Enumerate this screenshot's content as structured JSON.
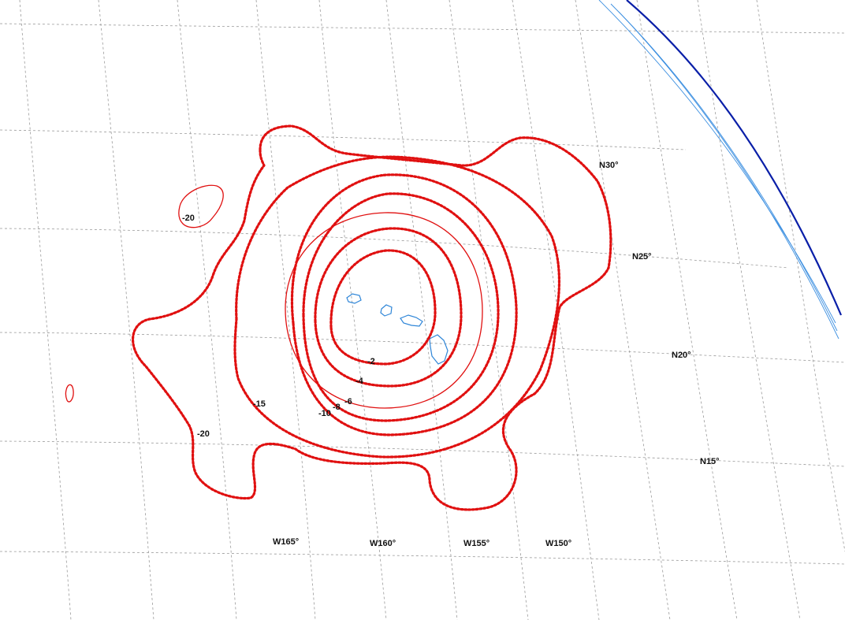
{
  "latitude_labels": [
    "N30°",
    "N25°",
    "N20°",
    "N15°"
  ],
  "longitude_labels": [
    "W165°",
    "W160°",
    "W155°",
    "W150°"
  ],
  "contour_labels": [
    "-2",
    "-4",
    "-6",
    "-8",
    "-10",
    "-15",
    "-20",
    "-20"
  ],
  "colors": {
    "contour": "#e01010",
    "graticule": "#9a9a9a",
    "coastline": "#2f86d8",
    "limb": "#0a1fa8",
    "background": "#ffffff"
  }
}
